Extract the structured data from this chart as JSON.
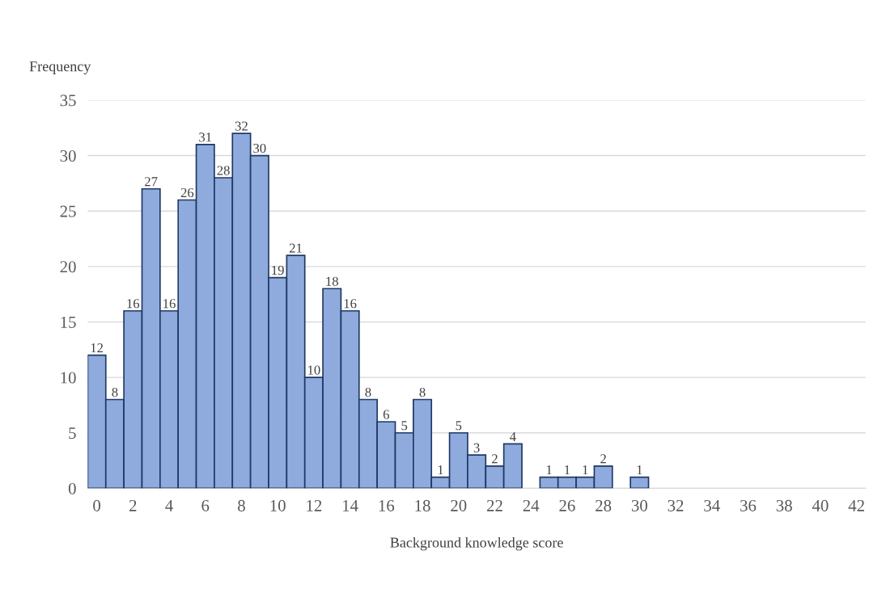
{
  "chart_data": {
    "type": "bar",
    "xlabel": "Background knowledge score",
    "ylabel": "Frequency",
    "categories": [
      "0",
      null,
      "2",
      null,
      "4",
      null,
      "6",
      null,
      "8",
      null,
      "10",
      null,
      "12",
      null,
      "14",
      null,
      "16",
      null,
      "18",
      null,
      "20",
      null,
      "22",
      null,
      "24",
      null,
      "26",
      null,
      "28",
      null,
      "30",
      null,
      "32",
      null,
      "34",
      null,
      "36",
      null,
      "38",
      null,
      "40",
      null,
      "42"
    ],
    "values": [
      12,
      8,
      16,
      27,
      16,
      26,
      31,
      28,
      32,
      30,
      19,
      21,
      10,
      18,
      16,
      8,
      6,
      5,
      8,
      1,
      5,
      3,
      2,
      4,
      0,
      1,
      1,
      1,
      2,
      0,
      1,
      0,
      0,
      0,
      0,
      0,
      0,
      0,
      0,
      0,
      0,
      0,
      0
    ],
    "value_labels": [
      "12",
      "8",
      "16",
      "27",
      "16",
      "26",
      "31",
      "28",
      "32",
      "30",
      "19",
      "21",
      "10",
      "18",
      "16",
      "8",
      "6",
      "5",
      "8",
      "1",
      "5",
      "3",
      "2",
      "4",
      null,
      "1",
      "1",
      "1",
      "2",
      null,
      "1",
      null,
      null,
      null,
      null,
      null,
      null,
      null,
      null,
      null,
      null,
      null,
      null
    ],
    "color": "#8faadc",
    "ylim": [
      0,
      35
    ],
    "yticks": [
      0,
      5,
      10,
      15,
      20,
      25,
      30,
      35
    ],
    "grid": "y"
  }
}
